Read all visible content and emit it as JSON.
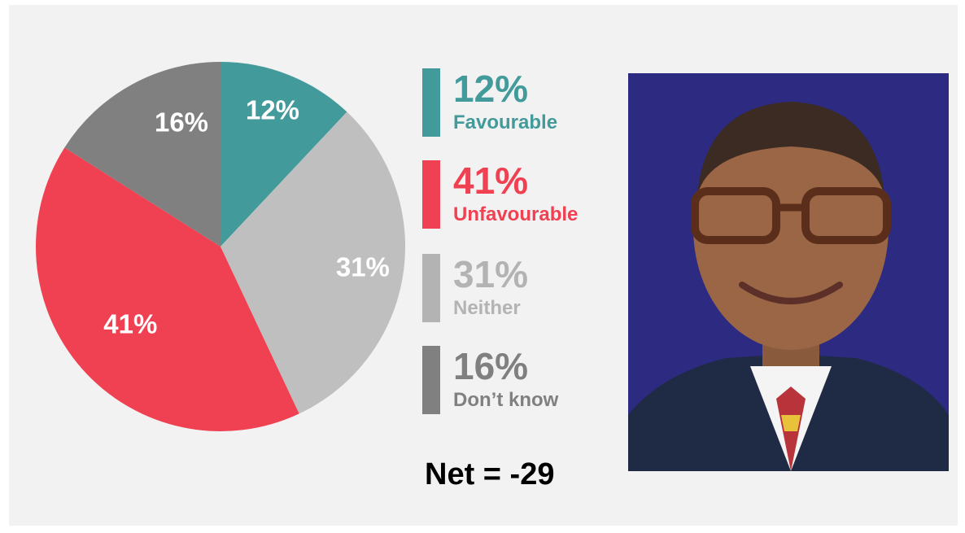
{
  "chart_data": {
    "type": "pie",
    "slices": [
      {
        "label": "Favourable",
        "value": 12,
        "display": "12%",
        "color": "#429a9b"
      },
      {
        "label": "Neither",
        "value": 31,
        "display": "31%",
        "color": "#bfbfbf"
      },
      {
        "label": "Unfavourable",
        "value": 41,
        "display": "41%",
        "color": "#f04152"
      },
      {
        "label": "Don’t know",
        "value": 16,
        "display": "16%",
        "color": "#808080"
      }
    ],
    "start_angle_deg": 0,
    "direction": "clockwise"
  },
  "legend": [
    {
      "value": "12%",
      "label": "Favourable",
      "color": "#429a9b"
    },
    {
      "value": "41%",
      "label": "Unfavourable",
      "color": "#f04152"
    },
    {
      "value": "31%",
      "label": "Neither",
      "color": "#b3b3b3"
    },
    {
      "value": "16%",
      "label": "Don’t know",
      "color": "#808080"
    }
  ],
  "net_text": "Net = -29",
  "photo_background": "#2d2a82"
}
